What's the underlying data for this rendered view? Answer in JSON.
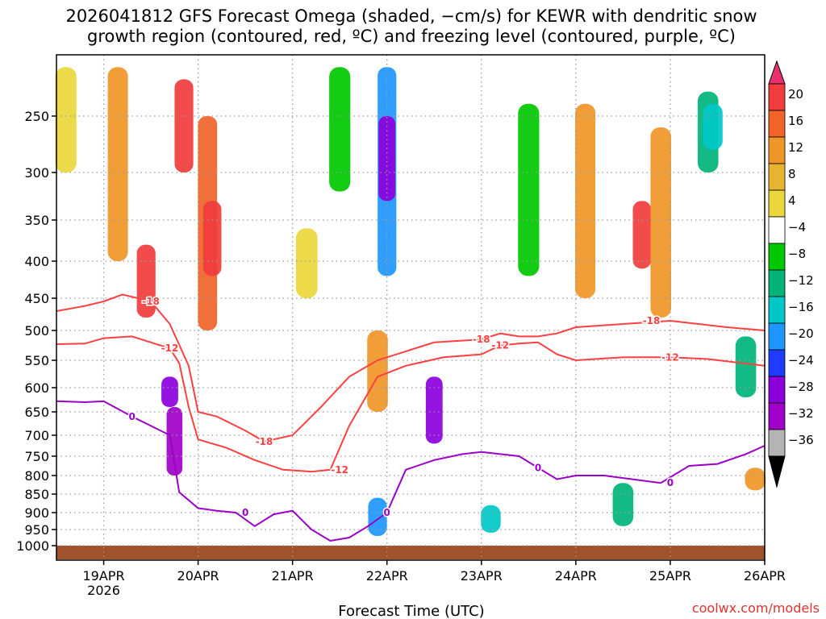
{
  "chart_data": {
    "type": "heatmap",
    "title_lines": [
      "2026041812 GFS Forecast Omega (shaded, −cm/s) for KEWR with dendritic snow",
      "growth region (contoured, red, ºC) and freezing level (contoured, purple, ºC)"
    ],
    "xlabel": "Forecast Time (UTC)",
    "ylabel": "",
    "x_ticks": [
      "19APR",
      "20APR",
      "21APR",
      "22APR",
      "23APR",
      "24APR",
      "25APR",
      "26APR"
    ],
    "x_tick_sub": "2026",
    "xlim_days_from_19APR": [
      -0.5,
      7.0
    ],
    "y_ticks": [
      250,
      300,
      350,
      400,
      450,
      500,
      550,
      600,
      650,
      700,
      750,
      800,
      850,
      900,
      950,
      1000
    ],
    "ylim_hpa": [
      200,
      1020
    ],
    "colorbar": {
      "labels": [
        "20",
        "16",
        "12",
        "8",
        "4",
        "−4",
        "−8",
        "−12",
        "−16",
        "−20",
        "−24",
        "−28",
        "−32",
        "−36"
      ],
      "colors": [
        "#e8306e",
        "#f03c3c",
        "#f06428",
        "#f09628",
        "#e6b430",
        "#ebd73c",
        "#ffffff",
        "#00c800",
        "#00b478",
        "#00c8c8",
        "#1e96ff",
        "#1e3cff",
        "#8c00dc",
        "#a000c8",
        "#b4b4b4",
        "#000000"
      ]
    },
    "contours": {
      "dendritic_minus12": {
        "label": "-12",
        "color": "#ff4040",
        "days": [
          -0.5,
          -0.2,
          0.0,
          0.3,
          0.5,
          0.7,
          0.8,
          0.9,
          1.0,
          1.3,
          1.6,
          1.9,
          2.2,
          2.4,
          2.6,
          2.9,
          3.2,
          3.6,
          4.0,
          4.2,
          4.4,
          4.6,
          4.8,
          5.0,
          5.5,
          6.0,
          6.4,
          7.0
        ],
        "hpa": [
          523,
          522,
          513,
          510,
          520,
          530,
          555,
          640,
          710,
          730,
          760,
          785,
          790,
          785,
          680,
          580,
          560,
          545,
          540,
          525,
          522,
          520,
          540,
          550,
          545,
          545,
          548,
          560
        ]
      },
      "dendritic_minus18": {
        "label": "-18",
        "color": "#ff4040",
        "days": [
          -0.5,
          -0.2,
          0.0,
          0.2,
          0.5,
          0.7,
          0.9,
          1.0,
          1.2,
          1.5,
          1.7,
          2.0,
          2.3,
          2.6,
          2.9,
          3.2,
          3.5,
          4.0,
          4.2,
          4.4,
          4.6,
          4.8,
          5.0,
          5.5,
          6.0,
          6.3,
          6.6,
          7.0
        ],
        "hpa": [
          470,
          462,
          455,
          445,
          455,
          490,
          560,
          650,
          660,
          690,
          715,
          700,
          640,
          580,
          550,
          535,
          520,
          515,
          505,
          510,
          510,
          505,
          495,
          490,
          485,
          490,
          495,
          500
        ]
      },
      "freezing_level_0": {
        "label": "0",
        "color": "#9b00c8",
        "days": [
          -0.5,
          -0.2,
          0.0,
          0.3,
          0.5,
          0.7,
          0.8,
          1.0,
          1.2,
          1.4,
          1.6,
          1.8,
          2.0,
          2.2,
          2.4,
          2.6,
          2.8,
          3.0,
          3.2,
          3.5,
          3.8,
          4.0,
          4.2,
          4.4,
          4.6,
          4.8,
          5.0,
          5.3,
          5.6,
          5.9,
          6.2,
          6.5,
          6.8,
          7.0
        ],
        "hpa": [
          628,
          630,
          628,
          660,
          680,
          700,
          845,
          888,
          895,
          900,
          940,
          905,
          895,
          950,
          985,
          975,
          940,
          900,
          785,
          760,
          745,
          740,
          745,
          750,
          780,
          810,
          800,
          800,
          810,
          820,
          775,
          770,
          745,
          725
        ]
      }
    },
    "omega_regions": [
      {
        "day": -0.4,
        "hpa_top": 210,
        "hpa_bot": 300,
        "value": 6
      },
      {
        "day": 0.15,
        "hpa_top": 210,
        "hpa_bot": 400,
        "value": 10
      },
      {
        "day": 0.45,
        "hpa_top": 380,
        "hpa_bot": 480,
        "value": 16
      },
      {
        "day": 0.85,
        "hpa_top": 220,
        "hpa_bot": 300,
        "value": 16
      },
      {
        "day": 1.1,
        "hpa_top": 250,
        "hpa_bot": 500,
        "value": 14
      },
      {
        "day": 1.15,
        "hpa_top": 330,
        "hpa_bot": 420,
        "value": 18
      },
      {
        "day": 0.7,
        "hpa_top": 580,
        "hpa_bot": 640,
        "value": -24
      },
      {
        "day": 0.75,
        "hpa_top": 640,
        "hpa_bot": 800,
        "value": -28
      },
      {
        "day": 2.15,
        "hpa_top": 360,
        "hpa_bot": 450,
        "value": 4
      },
      {
        "day": 2.5,
        "hpa_top": 210,
        "hpa_bot": 320,
        "value": -6
      },
      {
        "day": 2.9,
        "hpa_top": 500,
        "hpa_bot": 650,
        "value": 8
      },
      {
        "day": 3.0,
        "hpa_top": 210,
        "hpa_bot": 420,
        "value": -16
      },
      {
        "day": 3.0,
        "hpa_top": 250,
        "hpa_bot": 330,
        "value": -24
      },
      {
        "day": 2.9,
        "hpa_top": 860,
        "hpa_bot": 970,
        "value": -16
      },
      {
        "day": 3.5,
        "hpa_top": 580,
        "hpa_bot": 720,
        "value": -24
      },
      {
        "day": 4.1,
        "hpa_top": 880,
        "hpa_bot": 960,
        "value": -12
      },
      {
        "day": 4.5,
        "hpa_top": 240,
        "hpa_bot": 420,
        "value": -6
      },
      {
        "day": 5.1,
        "hpa_top": 240,
        "hpa_bot": 450,
        "value": 10
      },
      {
        "day": 5.7,
        "hpa_top": 330,
        "hpa_bot": 410,
        "value": 18
      },
      {
        "day": 5.9,
        "hpa_top": 260,
        "hpa_bot": 480,
        "value": 8
      },
      {
        "day": 6.4,
        "hpa_top": 230,
        "hpa_bot": 300,
        "value": -8
      },
      {
        "day": 6.45,
        "hpa_top": 240,
        "hpa_bot": 280,
        "value": -12
      },
      {
        "day": 6.8,
        "hpa_top": 510,
        "hpa_bot": 620,
        "value": -8
      },
      {
        "day": 6.9,
        "hpa_top": 780,
        "hpa_bot": 840,
        "value": 8
      },
      {
        "day": 5.5,
        "hpa_top": 820,
        "hpa_bot": 940,
        "value": -8
      }
    ]
  },
  "footer": {
    "credit": "coolwx.com/models"
  },
  "colors": {
    "grid": "#9a9a9a",
    "ground": "#a0522d"
  }
}
